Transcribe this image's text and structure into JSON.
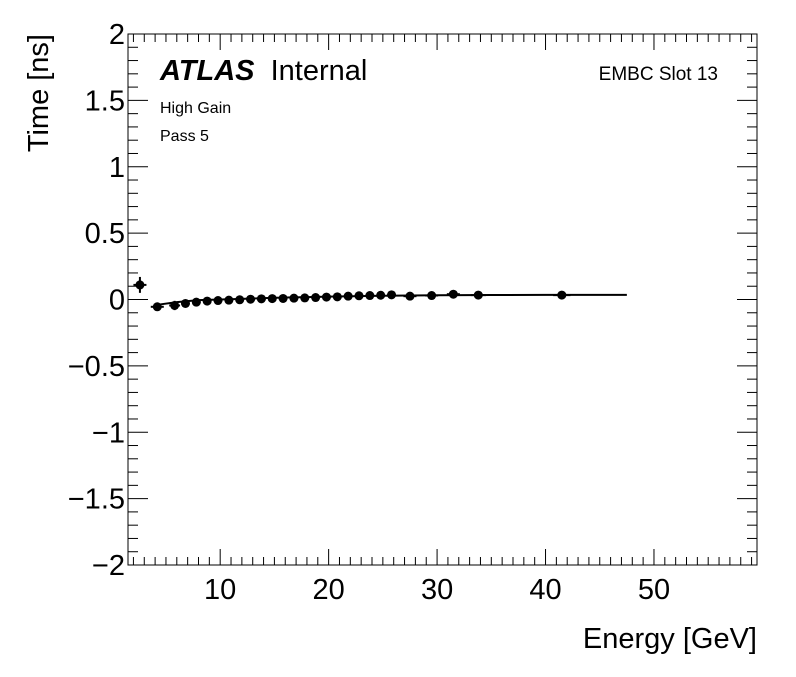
{
  "chart_data": {
    "type": "scatter",
    "title": "",
    "brand": "ATLAS",
    "brand_status": "Internal",
    "annotations": {
      "slot": "EMBC Slot 13",
      "gain": "High Gain",
      "pass": "Pass 5"
    },
    "xlabel": "Energy [GeV]",
    "ylabel": "Time [ns]",
    "xlim": [
      1.5,
      59.5
    ],
    "ylim": [
      -2,
      2
    ],
    "xticks": [
      10,
      20,
      30,
      40,
      50
    ],
    "yticks": [
      -2,
      -1.5,
      -1,
      -0.5,
      0,
      0.5,
      1,
      1.5,
      2
    ],
    "ytick_labels": [
      "−2",
      "−1.5",
      "−1",
      "−0.5",
      "0",
      "0.5",
      "1",
      "1.5",
      "2"
    ],
    "grid": false,
    "colors": {
      "markers": "#000000",
      "fit_line": "#000000",
      "frame": "#000000"
    },
    "fit_line": {
      "x": [
        4.2,
        6,
        8,
        10,
        12,
        14,
        16,
        18,
        20,
        25,
        30,
        35,
        40,
        47.5
      ],
      "y": [
        -0.04,
        -0.02,
        -0.005,
        0.0,
        0.005,
        0.01,
        0.015,
        0.018,
        0.022,
        0.028,
        0.032,
        0.034,
        0.035,
        0.035
      ]
    },
    "series": [
      {
        "points": [
          {
            "x": 2.6,
            "y": 0.11,
            "xerr": 0.6,
            "yerr": 0.06
          },
          {
            "x": 4.2,
            "y": -0.055,
            "xerr": 0.6,
            "yerr": 0.03
          },
          {
            "x": 5.8,
            "y": -0.045,
            "xerr": 0.5,
            "yerr": 0.035
          },
          {
            "x": 6.8,
            "y": -0.03,
            "xerr": 0.4,
            "yerr": 0.03
          },
          {
            "x": 7.8,
            "y": -0.02,
            "xerr": 0.4,
            "yerr": 0.03
          },
          {
            "x": 8.8,
            "y": -0.012,
            "xerr": 0.4,
            "yerr": 0.03
          },
          {
            "x": 9.8,
            "y": -0.008,
            "xerr": 0.4,
            "yerr": 0.03
          },
          {
            "x": 10.8,
            "y": -0.005,
            "xerr": 0.4,
            "yerr": 0.025
          },
          {
            "x": 11.8,
            "y": -0.002,
            "xerr": 0.4,
            "yerr": 0.025
          },
          {
            "x": 12.8,
            "y": 0.002,
            "xerr": 0.4,
            "yerr": 0.025
          },
          {
            "x": 13.8,
            "y": 0.005,
            "xerr": 0.4,
            "yerr": 0.025
          },
          {
            "x": 14.8,
            "y": 0.007,
            "xerr": 0.4,
            "yerr": 0.025
          },
          {
            "x": 15.8,
            "y": 0.008,
            "xerr": 0.4,
            "yerr": 0.025
          },
          {
            "x": 16.8,
            "y": 0.01,
            "xerr": 0.4,
            "yerr": 0.025
          },
          {
            "x": 17.8,
            "y": 0.012,
            "xerr": 0.4,
            "yerr": 0.025
          },
          {
            "x": 18.8,
            "y": 0.015,
            "xerr": 0.4,
            "yerr": 0.025
          },
          {
            "x": 19.8,
            "y": 0.018,
            "xerr": 0.4,
            "yerr": 0.025
          },
          {
            "x": 20.8,
            "y": 0.02,
            "xerr": 0.4,
            "yerr": 0.025
          },
          {
            "x": 21.8,
            "y": 0.025,
            "xerr": 0.4,
            "yerr": 0.025
          },
          {
            "x": 22.8,
            "y": 0.028,
            "xerr": 0.4,
            "yerr": 0.025
          },
          {
            "x": 23.8,
            "y": 0.03,
            "xerr": 0.4,
            "yerr": 0.025
          },
          {
            "x": 24.8,
            "y": 0.032,
            "xerr": 0.4,
            "yerr": 0.025
          },
          {
            "x": 25.8,
            "y": 0.035,
            "xerr": 0.4,
            "yerr": 0.025
          },
          {
            "x": 27.5,
            "y": 0.025,
            "xerr": 0.6,
            "yerr": 0.02
          },
          {
            "x": 29.5,
            "y": 0.03,
            "xerr": 0.6,
            "yerr": 0.02
          },
          {
            "x": 31.5,
            "y": 0.04,
            "xerr": 0.6,
            "yerr": 0.02
          },
          {
            "x": 33.8,
            "y": 0.033,
            "xerr": 0.7,
            "yerr": 0.02
          },
          {
            "x": 41.5,
            "y": 0.033,
            "xerr": 0.8,
            "yerr": 0.02
          }
        ]
      }
    ]
  }
}
